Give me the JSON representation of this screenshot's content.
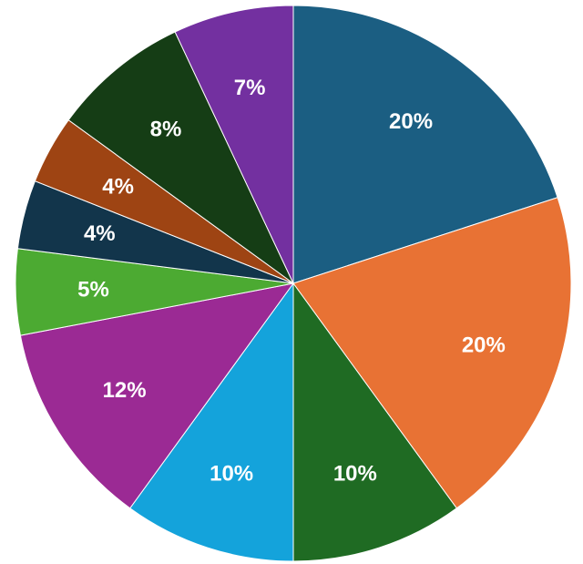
{
  "chart_data": {
    "type": "pie",
    "title": "",
    "start_angle_deg": 0,
    "direction": "clockwise",
    "slices": [
      {
        "value": 20,
        "label": "20%",
        "color": "#1b5e82"
      },
      {
        "value": 20,
        "label": "20%",
        "color": "#e87234"
      },
      {
        "value": 10,
        "label": "10%",
        "color": "#1f6b23"
      },
      {
        "value": 10,
        "label": "10%",
        "color": "#14a3db"
      },
      {
        "value": 12,
        "label": "12%",
        "color": "#9b2a94"
      },
      {
        "value": 5,
        "label": "5%",
        "color": "#4caa32"
      },
      {
        "value": 4,
        "label": "4%",
        "color": "#12354b"
      },
      {
        "value": 4,
        "label": "4%",
        "color": "#9e4413"
      },
      {
        "value": 8,
        "label": "8%",
        "color": "#153d15"
      },
      {
        "value": 7,
        "label": "7%",
        "color": "#7330a0"
      }
    ]
  }
}
